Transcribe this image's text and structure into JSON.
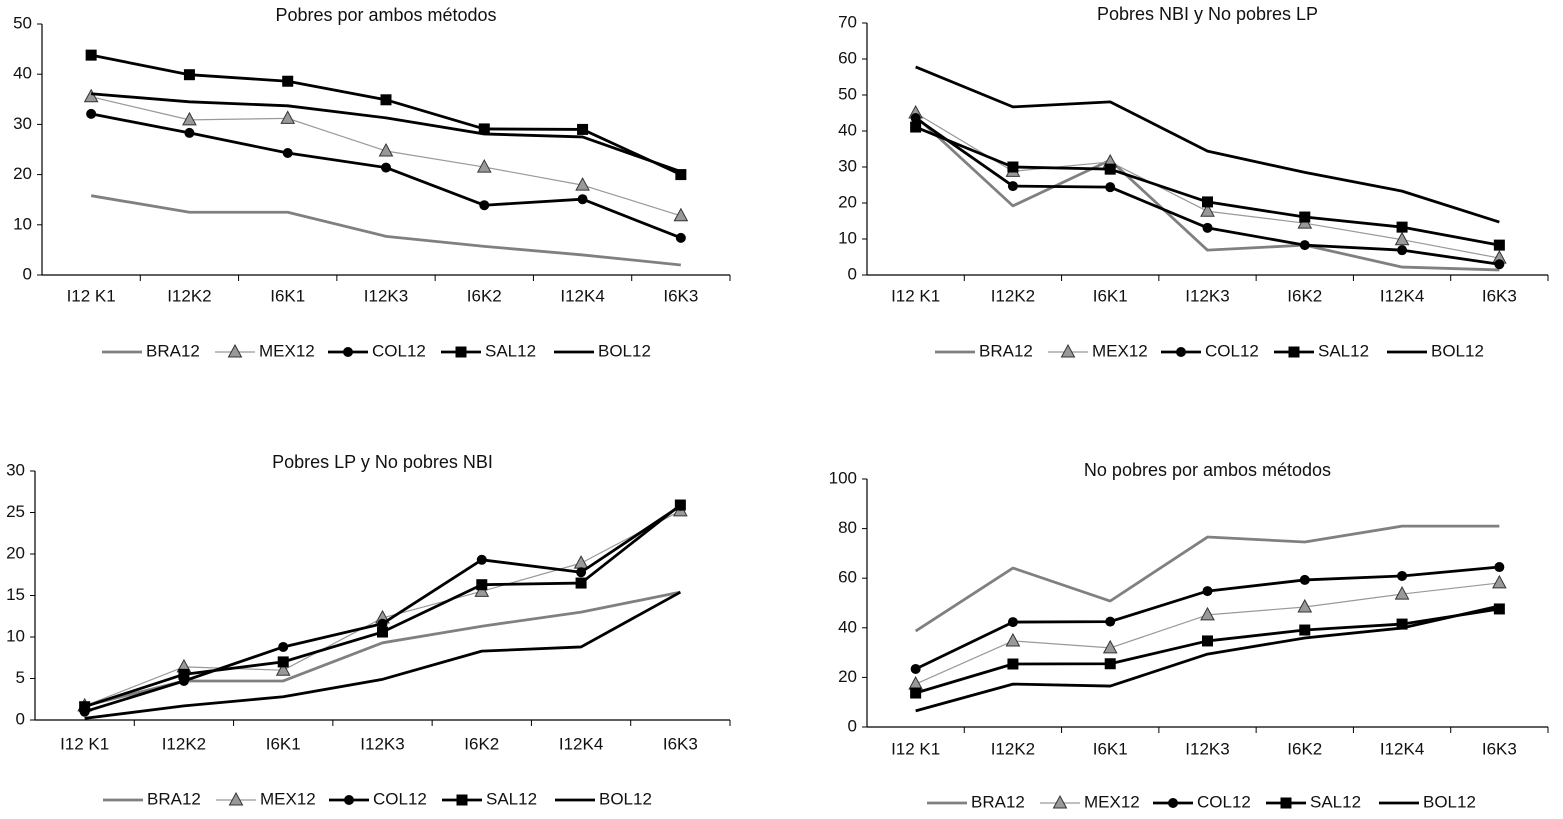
{
  "chart_data": [
    {
      "type": "line",
      "title": "Pobres por ambos métodos",
      "categories": [
        "I12 K1",
        "I12K2",
        "I6K1",
        "I12K3",
        "I6K2",
        "I12K4",
        "I6K3"
      ],
      "ylim": [
        0,
        50
      ],
      "yticks": [
        0,
        10,
        20,
        30,
        40,
        50
      ],
      "series": [
        {
          "name": "BRA12",
          "color": "#808080",
          "marker": "none",
          "values": [
            15.8,
            12.5,
            12.5,
            7.7,
            5.7,
            4.0,
            2.0
          ]
        },
        {
          "name": "MEX12",
          "color": "#999999",
          "marker": "triangle",
          "values": [
            35.5,
            30.9,
            31.2,
            24.7,
            21.5,
            17.9,
            11.8
          ]
        },
        {
          "name": "COL12",
          "color": "#000000",
          "marker": "circle",
          "values": [
            32.1,
            28.3,
            24.3,
            21.4,
            13.9,
            15.1,
            7.4
          ]
        },
        {
          "name": "SAL12",
          "color": "#000000",
          "marker": "square",
          "values": [
            43.8,
            39.9,
            38.6,
            34.9,
            29.1,
            29.0,
            20.0
          ]
        },
        {
          "name": "BOL12",
          "color": "#000000",
          "marker": "none",
          "values": [
            36.1,
            34.5,
            33.7,
            31.3,
            28.1,
            27.5,
            20.6
          ]
        }
      ]
    },
    {
      "type": "line",
      "title": "Pobres NBI y No pobres LP",
      "categories": [
        "I12 K1",
        "I12K2",
        "I6K1",
        "I12K3",
        "I6K2",
        "I12K4",
        "I6K3"
      ],
      "ylim": [
        0,
        70
      ],
      "yticks": [
        0,
        10,
        20,
        30,
        40,
        50,
        60,
        70
      ],
      "series": [
        {
          "name": "BRA12",
          "color": "#808080",
          "marker": "none",
          "values": [
            44.1,
            19.2,
            31.9,
            6.9,
            8.3,
            2.2,
            1.4
          ]
        },
        {
          "name": "MEX12",
          "color": "#999999",
          "marker": "triangle",
          "values": [
            45.0,
            28.8,
            31.4,
            17.7,
            14.4,
            9.8,
            4.7
          ]
        },
        {
          "name": "COL12",
          "color": "#000000",
          "marker": "circle",
          "values": [
            43.6,
            24.7,
            24.4,
            13.1,
            8.3,
            6.9,
            3.0
          ]
        },
        {
          "name": "SAL12",
          "color": "#000000",
          "marker": "square",
          "values": [
            41.1,
            30.0,
            29.4,
            20.3,
            16.1,
            13.3,
            8.3
          ]
        },
        {
          "name": "BOL12",
          "color": "#000000",
          "marker": "none",
          "values": [
            57.8,
            46.7,
            48.1,
            34.4,
            28.5,
            23.3,
            14.7
          ]
        }
      ]
    },
    {
      "type": "line",
      "title": "Pobres LP y No pobres NBI",
      "categories": [
        "I12 K1",
        "I12K2",
        "I6K1",
        "I12K3",
        "I6K2",
        "I12K4",
        "I6K3"
      ],
      "ylim": [
        0,
        30
      ],
      "yticks": [
        0,
        5,
        10,
        15,
        20,
        25,
        30
      ],
      "series": [
        {
          "name": "BRA12",
          "color": "#808080",
          "marker": "none",
          "values": [
            1.7,
            4.7,
            4.7,
            9.3,
            11.3,
            13.0,
            15.4
          ]
        },
        {
          "name": "MEX12",
          "color": "#999999",
          "marker": "triangle",
          "values": [
            1.7,
            6.4,
            6.0,
            12.3,
            15.5,
            18.9,
            25.2
          ]
        },
        {
          "name": "COL12",
          "color": "#000000",
          "marker": "circle",
          "values": [
            1.0,
            4.7,
            8.8,
            11.6,
            19.3,
            17.8,
            25.8
          ]
        },
        {
          "name": "SAL12",
          "color": "#000000",
          "marker": "square",
          "values": [
            1.6,
            5.5,
            7.0,
            10.6,
            16.3,
            16.5,
            25.9
          ]
        },
        {
          "name": "BOL12",
          "color": "#000000",
          "marker": "none",
          "values": [
            0.2,
            1.7,
            2.8,
            4.9,
            8.3,
            8.8,
            15.4
          ]
        }
      ]
    },
    {
      "type": "line",
      "title": "No pobres por ambos métodos",
      "categories": [
        "I12 K1",
        "I12K2",
        "I6K1",
        "I12K3",
        "I6K2",
        "I12K4",
        "I6K3"
      ],
      "ylim": [
        0,
        100
      ],
      "yticks": [
        0,
        20,
        40,
        60,
        80,
        100
      ],
      "series": [
        {
          "name": "BRA12",
          "color": "#808080",
          "marker": "none",
          "values": [
            38.7,
            64.1,
            50.8,
            76.6,
            74.6,
            81.0,
            81.0
          ]
        },
        {
          "name": "MEX12",
          "color": "#999999",
          "marker": "triangle",
          "values": [
            17.3,
            34.7,
            31.9,
            45.2,
            48.4,
            53.6,
            58.1
          ]
        },
        {
          "name": "COL12",
          "color": "#000000",
          "marker": "circle",
          "values": [
            23.4,
            42.3,
            42.5,
            54.8,
            59.3,
            60.9,
            64.5
          ]
        },
        {
          "name": "SAL12",
          "color": "#000000",
          "marker": "square",
          "values": [
            13.7,
            25.4,
            25.5,
            34.7,
            39.1,
            41.5,
            47.6
          ]
        },
        {
          "name": "BOL12",
          "color": "#000000",
          "marker": "none",
          "values": [
            6.5,
            17.3,
            16.5,
            29.4,
            35.9,
            39.9,
            48.8
          ]
        }
      ]
    }
  ]
}
